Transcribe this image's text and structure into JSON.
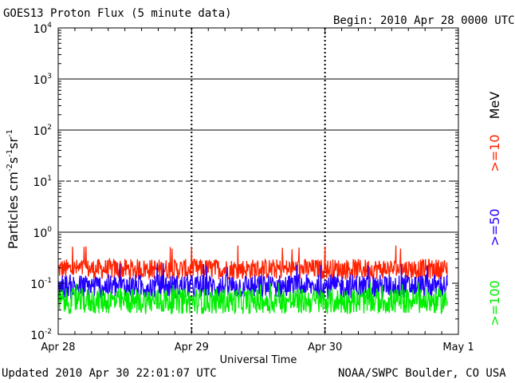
{
  "header": {
    "title": "GOES13 Proton Flux (5 minute data)",
    "begin": "Begin: 2010 Apr 28 0000 UTC"
  },
  "footer": {
    "updated": "Updated 2010 Apr 30 22:01:07 UTC",
    "credit": "NOAA/SWPC Boulder, CO USA"
  },
  "chart_data": {
    "type": "line",
    "title": "GOES13 Proton Flux (5 minute data)",
    "xlabel": "Universal Time",
    "ylabel": "Particles cm⁻²s⁻¹sr⁻¹",
    "ylabel_parts": [
      "Particles cm",
      "-2",
      "s",
      "-1",
      "sr",
      "-1"
    ],
    "yscale": "log",
    "ylim": [
      0.01,
      10000
    ],
    "y_ticks": [
      {
        "base": "10",
        "exp": "-2"
      },
      {
        "base": "10",
        "exp": "-1"
      },
      {
        "base": "10",
        "exp": "0"
      },
      {
        "base": "10",
        "exp": "1"
      },
      {
        "base": "10",
        "exp": "2"
      },
      {
        "base": "10",
        "exp": "3"
      },
      {
        "base": "10",
        "exp": "4"
      }
    ],
    "x_ticks": [
      "Apr 28",
      "Apr 29",
      "Apr 30",
      "May 1"
    ],
    "x_range_days": [
      0,
      3
    ],
    "data_end_day": 2.917,
    "threshold_lines": [
      {
        "value": 1,
        "style": "solid"
      },
      {
        "value": 10,
        "style": "dashed"
      },
      {
        "value": 100,
        "style": "solid"
      },
      {
        "value": 1000,
        "style": "solid"
      }
    ],
    "side_labels": [
      {
        "text": "MeV",
        "color": "#000000"
      },
      {
        "text": ">=10",
        "color": "#ff2200"
      },
      {
        "text": ">=50",
        "color": "#2200ff"
      },
      {
        "text": ">=100",
        "color": "#00ee00"
      }
    ],
    "series": [
      {
        "name": ">=10 MeV",
        "color": "#ff2200",
        "typical_range": [
          0.12,
          0.3
        ],
        "peak": 0.55
      },
      {
        "name": ">=50 MeV",
        "color": "#2200ff",
        "typical_range": [
          0.05,
          0.15
        ],
        "peak": 0.25
      },
      {
        "name": ">=100 MeV",
        "color": "#00ee00",
        "typical_range": [
          0.025,
          0.08
        ],
        "peak": 0.11
      }
    ]
  }
}
